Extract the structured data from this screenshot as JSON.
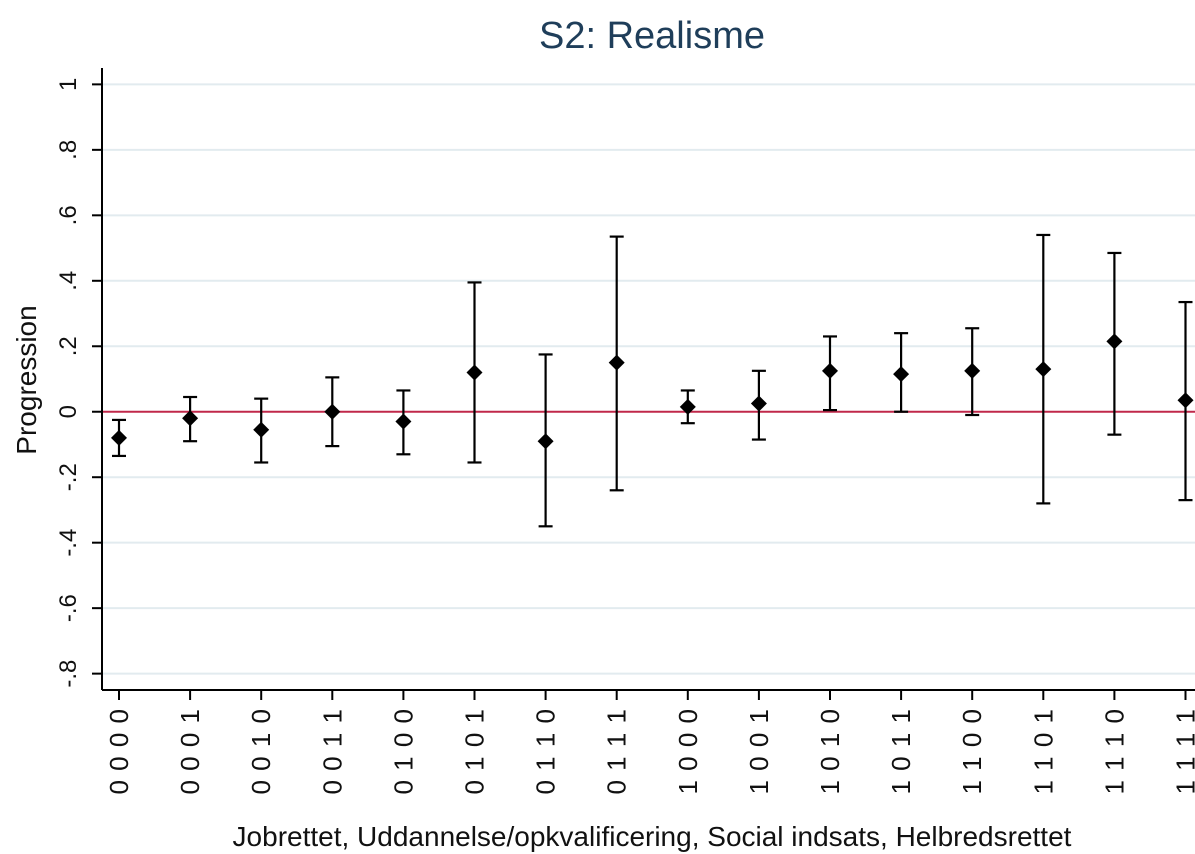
{
  "chart_data": {
    "type": "scatter",
    "title": "S2: Realisme",
    "xlabel": "Jobrettet, Uddannelse/opkvalificering, Social indsats, Helbredsrettet",
    "ylabel": "Progression",
    "ylim": [
      -0.85,
      1.05
    ],
    "yticks": [
      1,
      0.8,
      0.6,
      0.4,
      0.2,
      0,
      -0.2,
      -0.4,
      -0.6,
      -0.8
    ],
    "ytick_labels": [
      "1",
      ".8",
      ".6",
      ".4",
      ".2",
      "0",
      "-.2",
      "-.4",
      "-.6",
      "-.8"
    ],
    "reference_line": 0,
    "grid": true,
    "categories": [
      "0 0 0 0",
      "0 0 0 1",
      "0 0 1 0",
      "0 0 1 1",
      "0 1 0 0",
      "0 1 0 1",
      "0 1 1 0",
      "0 1 1 1",
      "1 0 0 0",
      "1 0 0 1",
      "1 0 1 0",
      "1 0 1 1",
      "1 1 0 0",
      "1 1 0 1",
      "1 1 1 0",
      "1 1 1 1"
    ],
    "estimates": [
      -0.08,
      -0.02,
      -0.055,
      0.0,
      -0.03,
      0.12,
      -0.09,
      0.15,
      0.015,
      0.025,
      0.125,
      0.115,
      0.125,
      0.13,
      0.215,
      0.035
    ],
    "lower": [
      -0.135,
      -0.09,
      -0.155,
      -0.105,
      -0.13,
      -0.155,
      -0.35,
      -0.24,
      -0.035,
      -0.085,
      0.005,
      0.0,
      -0.01,
      -0.28,
      -0.07,
      -0.27
    ],
    "upper": [
      -0.025,
      0.045,
      0.04,
      0.105,
      0.065,
      0.395,
      0.175,
      0.535,
      0.065,
      0.125,
      0.23,
      0.24,
      0.255,
      0.54,
      0.485,
      0.335
    ]
  }
}
